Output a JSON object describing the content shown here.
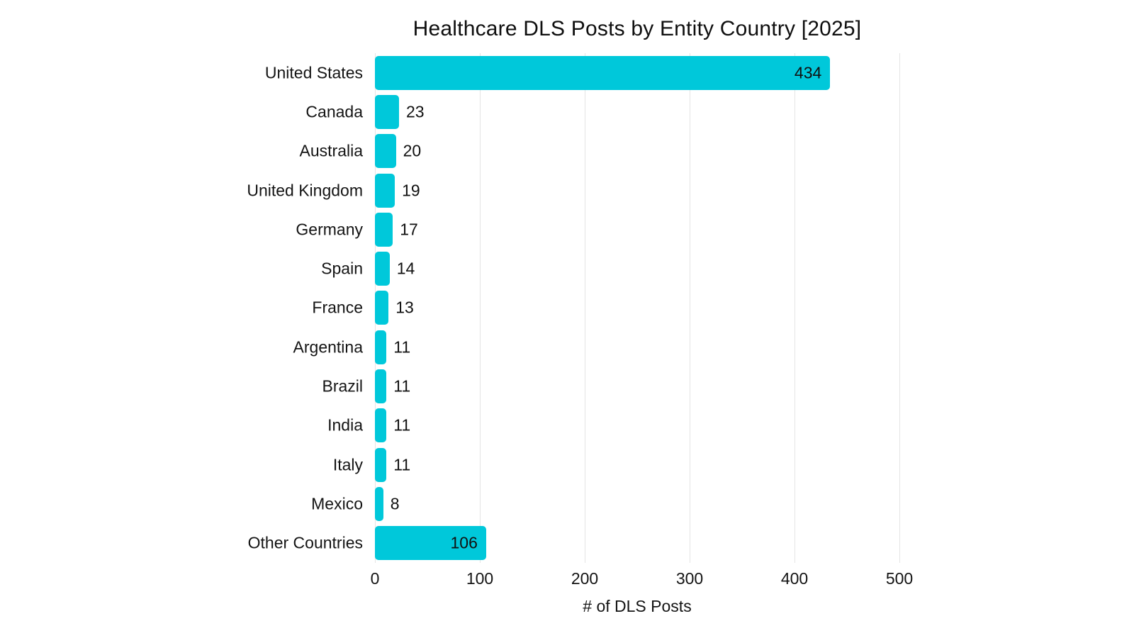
{
  "chart_data": {
    "type": "bar",
    "orientation": "horizontal",
    "title": "Healthcare DLS Posts by Entity Country [2025]",
    "xlabel": "# of DLS Posts",
    "categories": [
      "United States",
      "Canada",
      "Australia",
      "United Kingdom",
      "Germany",
      "Spain",
      "France",
      "Argentina",
      "Brazil",
      "India",
      "Italy",
      "Mexico",
      "Other Countries"
    ],
    "values": [
      434,
      23,
      20,
      19,
      17,
      14,
      13,
      11,
      11,
      11,
      11,
      8,
      106
    ],
    "xticks": [
      0,
      100,
      200,
      300,
      400,
      500
    ],
    "xlim": [
      0,
      513
    ],
    "grid": true,
    "legend": false,
    "bar_color": "#00C8DA",
    "gridline_color": "#e4e4e4",
    "text_color": "#111111"
  }
}
